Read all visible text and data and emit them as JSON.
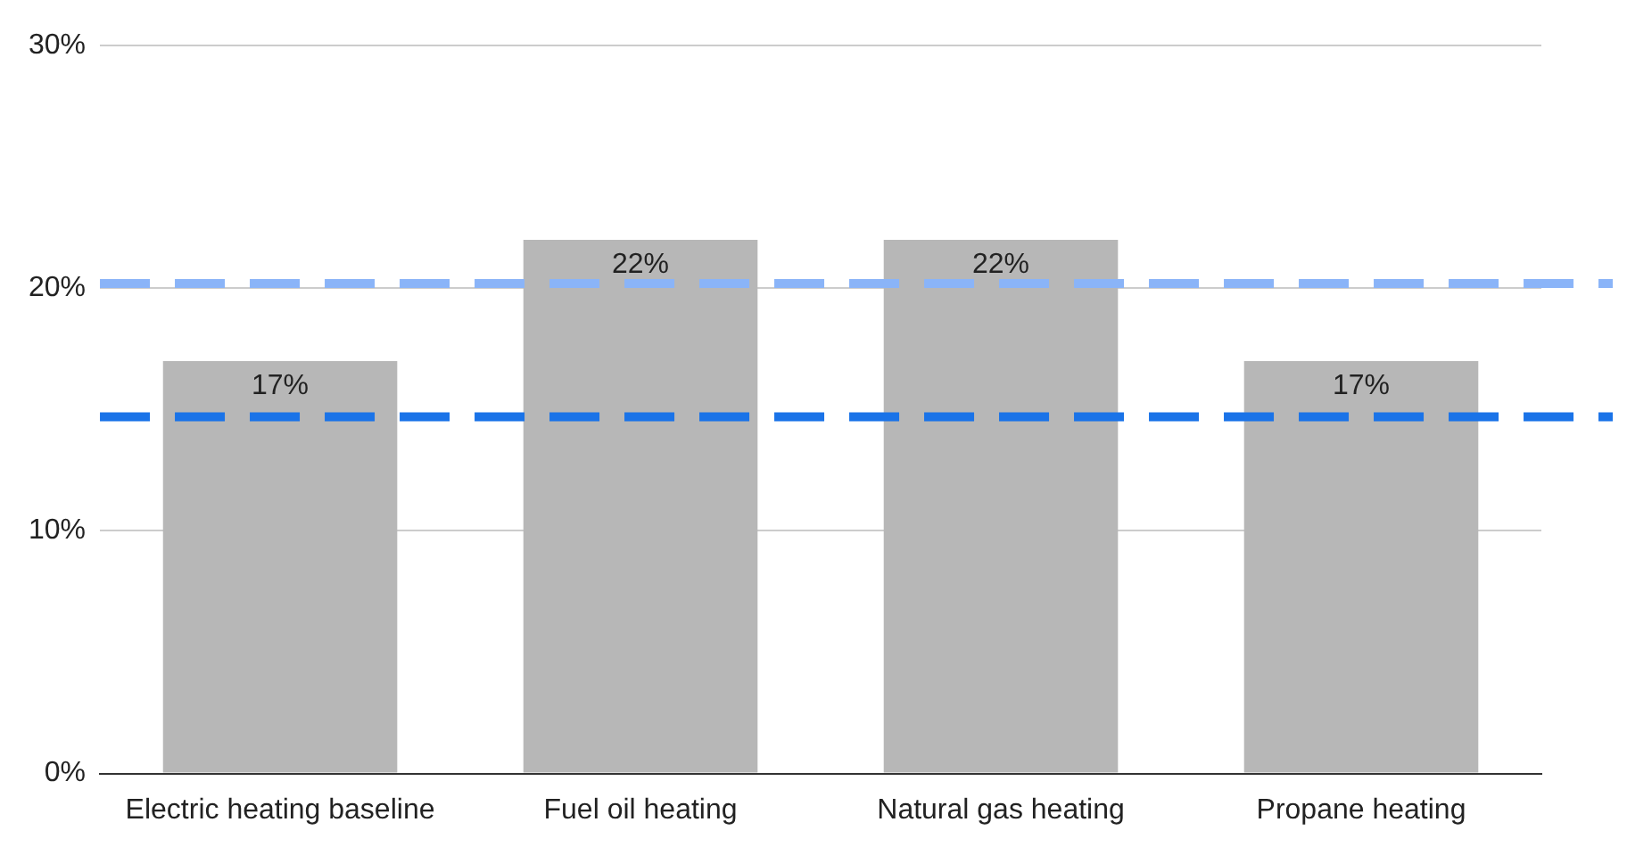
{
  "chart_data": {
    "type": "bar",
    "categories": [
      "Electric heating baseline",
      "Fuel oil heating",
      "Natural gas heating",
      "Propane heating"
    ],
    "values": [
      17,
      22,
      22,
      17
    ],
    "color": "#b7b7b7",
    "value_labels": [
      "17%",
      "22%",
      "22%",
      "17%"
    ],
    "ylim": [
      0,
      30
    ],
    "yticks": [
      {
        "value": 0,
        "label": "0%"
      },
      {
        "value": 10,
        "label": "10%"
      },
      {
        "value": 20,
        "label": "20%"
      },
      {
        "value": 30,
        "label": "30%"
      }
    ],
    "grid": "y",
    "legend": false,
    "ref_lines": [
      {
        "axis": "y",
        "value": 20.2,
        "color": "#8ab4f8",
        "line_style": "dashed"
      },
      {
        "axis": "y",
        "value": 14.7,
        "color": "#1a73e8",
        "line_style": "dashed"
      }
    ]
  }
}
